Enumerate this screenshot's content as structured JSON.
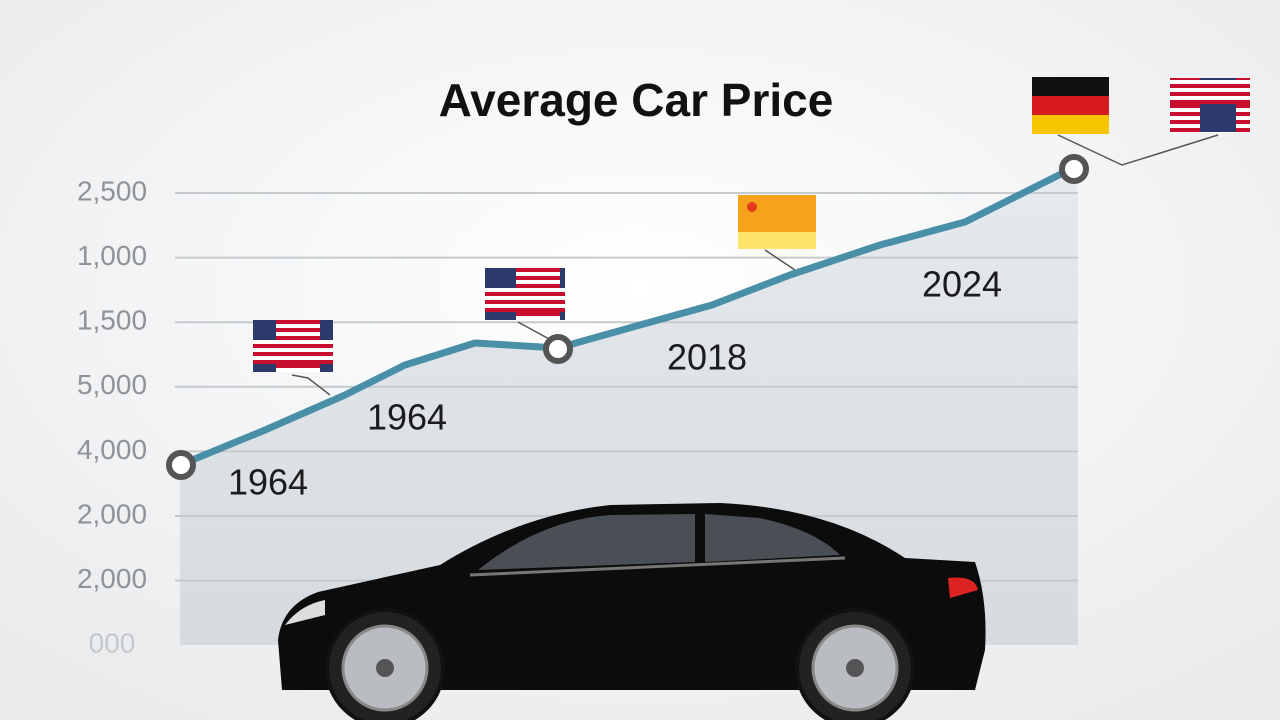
{
  "title": "Average Car Price",
  "y_axis_labels": [
    "2,500",
    "1,000",
    "1,500",
    "5,000",
    "4,000",
    "2,000",
    "2,000",
    "000"
  ],
  "annotations": [
    "1964",
    "1964",
    "2018",
    "2024"
  ]
}
